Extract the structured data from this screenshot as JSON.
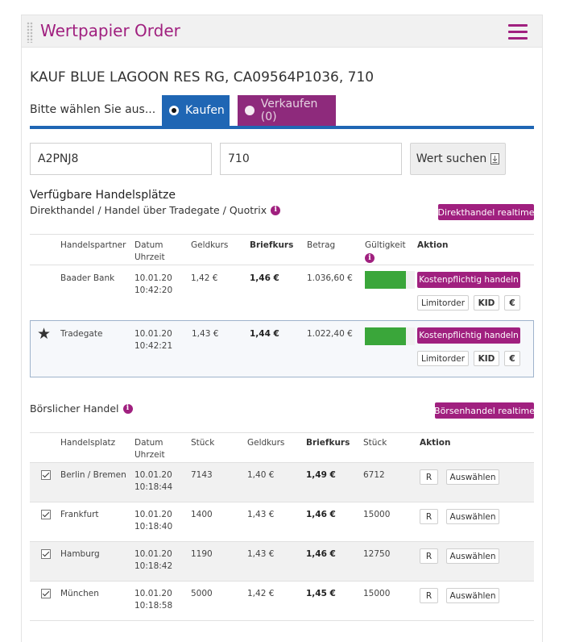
{
  "header": {
    "title": "Wertpapier Order"
  },
  "order": {
    "title": "KAUF BLUE LAGOON RES RG, CA09564P1036, 710"
  },
  "selection": {
    "prompt": "Bitte wählen Sie aus...",
    "buy_label": "Kaufen",
    "sell_label": "Verkaufen (0)",
    "selected": "Kaufen"
  },
  "search": {
    "isin_value": "A2PNJ8",
    "quantity_value": "710",
    "button_label": "Wert suchen"
  },
  "direct": {
    "section_title": "Verfügbare Handelsplätze",
    "subtitle": "Direkthandel / Handel über Tradegate / Quotrix",
    "realtime_button": "Direkthandel realtime",
    "columns": {
      "partner": "Handelspartner",
      "date": "Datum",
      "time": "Uhrzeit",
      "bid": "Geldkurs",
      "ask": "Briefkurs",
      "amount": "Betrag",
      "validity": "Gültigkeit",
      "action": "Aktion"
    },
    "rows": [
      {
        "partner": "Baader Bank",
        "date": "10.01.20",
        "time": "10:42:20",
        "bid": "1,42 €",
        "ask": "1,46 €",
        "amount": "1.036,60 €",
        "validity": 0.82,
        "trade_button": "Kostenpflichtig handeln",
        "limit_button": "Limitorder",
        "kid_button": "KID",
        "eur_button": "€"
      },
      {
        "partner": "Tradegate",
        "date": "10.01.20",
        "time": "10:42:21",
        "bid": "1,43 €",
        "ask": "1,44 €",
        "amount": "1.022,40 €",
        "validity": 0.82,
        "trade_button": "Kostenpflichtig handeln",
        "limit_button": "Limitorder",
        "kid_button": "KID",
        "eur_button": "€",
        "starred": true
      }
    ]
  },
  "exchange": {
    "section_title": "Börslicher Handel",
    "realtime_button": "Börsenhandel realtime",
    "columns": {
      "venue": "Handelsplatz",
      "date": "Datum",
      "time": "Uhrzeit",
      "qty": "Stück",
      "bid": "Geldkurs",
      "ask": "Briefkurs",
      "qty2": "Stück",
      "action": "Aktion"
    },
    "rows": [
      {
        "venue": "Berlin / Bremen",
        "date": "10.01.20",
        "time": "10:18:44",
        "qty": "7143",
        "bid": "1,40 €",
        "ask": "1,49 €",
        "qty2": "6712",
        "r_button": "R",
        "select_button": "Auswählen",
        "checked": true
      },
      {
        "venue": "Frankfurt",
        "date": "10.01.20",
        "time": "10:18:40",
        "qty": "1400",
        "bid": "1,43 €",
        "ask": "1,46 €",
        "qty2": "15000",
        "r_button": "R",
        "select_button": "Auswählen",
        "checked": true
      },
      {
        "venue": "Hamburg",
        "date": "10.01.20",
        "time": "10:18:42",
        "qty": "1190",
        "bid": "1,43 €",
        "ask": "1,46 €",
        "qty2": "12750",
        "r_button": "R",
        "select_button": "Auswählen",
        "checked": true
      },
      {
        "venue": "München",
        "date": "10.01.20",
        "time": "10:18:58",
        "qty": "5000",
        "bid": "1,42 €",
        "ask": "1,45 €",
        "qty2": "15000",
        "r_button": "R",
        "select_button": "Auswählen",
        "checked": true
      }
    ]
  },
  "colors": {
    "accent": "#a0207f",
    "primary_blue": "#1f66b4",
    "validity_green": "#3aa63a"
  },
  "icons": {
    "menu": "hamburger-icon",
    "search": "document-icon",
    "info": "info-icon",
    "favorite": "star-icon"
  }
}
